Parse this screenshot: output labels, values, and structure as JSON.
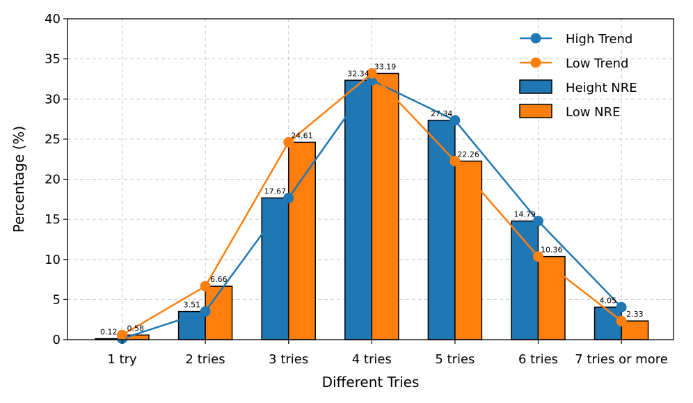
{
  "chart_data": {
    "type": "bar",
    "categories": [
      "1 try",
      "2 tries",
      "3 tries",
      "4 tries",
      "5 tries",
      "6 tries",
      "7 tries or more"
    ],
    "series": [
      {
        "name": "Height NRE",
        "type": "bar",
        "values": [
          0.12,
          3.51,
          17.67,
          32.34,
          27.34,
          14.79,
          4.05
        ],
        "labels": [
          "0.12",
          "3.51",
          "17.67",
          "32.34",
          "27.34",
          "14.79",
          "4.05"
        ],
        "color": "#1f77b4"
      },
      {
        "name": "Low NRE",
        "type": "bar",
        "values": [
          0.58,
          6.66,
          24.61,
          33.19,
          22.26,
          10.36,
          2.33
        ],
        "labels": [
          "0.58",
          "6.66",
          "24.61",
          "33.19",
          "22.26",
          "10.36",
          "2.33"
        ],
        "color": "#ff7f0e"
      },
      {
        "name": "High Trend",
        "type": "line",
        "values": [
          0.12,
          3.51,
          17.67,
          32.34,
          27.34,
          14.79,
          4.05
        ],
        "color": "#1f77b4"
      },
      {
        "name": "Low Trend",
        "type": "line",
        "values": [
          0.58,
          6.66,
          24.61,
          33.19,
          22.26,
          10.36,
          2.33
        ],
        "color": "#ff7f0e"
      }
    ],
    "xlabel": "Different Tries",
    "ylabel": "Percentage (%)",
    "ylim": [
      0,
      40
    ],
    "yticks": [
      "0",
      "5",
      "10",
      "15",
      "20",
      "25",
      "30",
      "35",
      "40"
    ],
    "grid": true,
    "legend": {
      "position": "top-right",
      "entries": [
        "High Trend",
        "Low Trend",
        "Height NRE",
        "Low NRE"
      ]
    }
  }
}
